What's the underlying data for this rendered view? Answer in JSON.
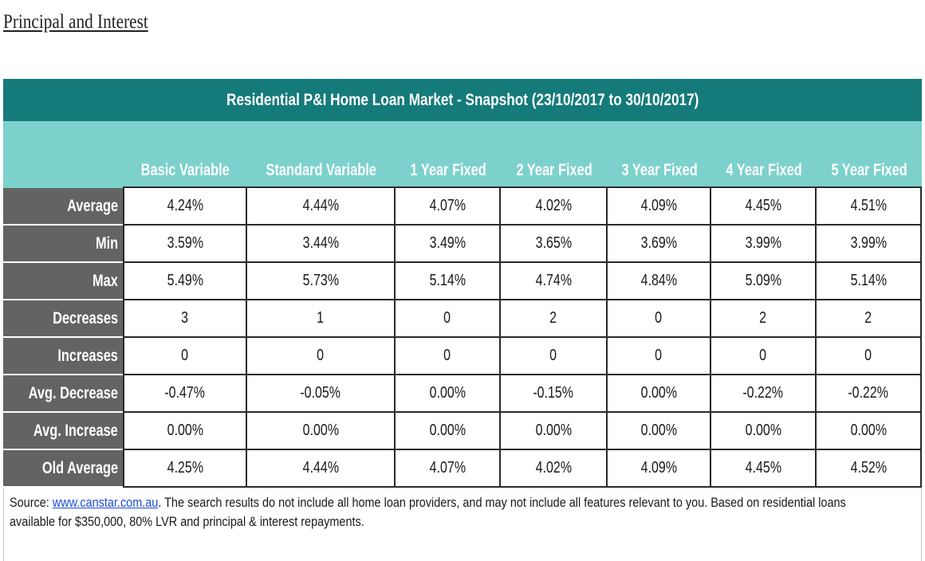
{
  "heading": "Principal and Interest",
  "table": {
    "title": "Residential P&I Home Loan Market - Snapshot (23/10/2017 to 30/10/2017)",
    "columns": [
      "Basic Variable",
      "Standard Variable",
      "1 Year Fixed",
      "2 Year Fixed",
      "3 Year Fixed",
      "4 Year Fixed",
      "5 Year Fixed"
    ],
    "rows": [
      {
        "label": "Average",
        "values": [
          "4.24%",
          "4.44%",
          "4.07%",
          "4.02%",
          "4.09%",
          "4.45%",
          "4.51%"
        ]
      },
      {
        "label": "Min",
        "values": [
          "3.59%",
          "3.44%",
          "3.49%",
          "3.65%",
          "3.69%",
          "3.99%",
          "3.99%"
        ]
      },
      {
        "label": "Max",
        "values": [
          "5.49%",
          "5.73%",
          "5.14%",
          "4.74%",
          "4.84%",
          "5.09%",
          "5.14%"
        ]
      },
      {
        "label": "Decreases",
        "values": [
          "3",
          "1",
          "0",
          "2",
          "0",
          "2",
          "2"
        ]
      },
      {
        "label": "Increases",
        "values": [
          "0",
          "0",
          "0",
          "0",
          "0",
          "0",
          "0"
        ]
      },
      {
        "label": "Avg. Decrease",
        "values": [
          "-0.47%",
          "-0.05%",
          "0.00%",
          "-0.15%",
          "0.00%",
          "-0.22%",
          "-0.22%"
        ]
      },
      {
        "label": "Avg. Increase",
        "values": [
          "0.00%",
          "0.00%",
          "0.00%",
          "0.00%",
          "0.00%",
          "0.00%",
          "0.00%"
        ]
      },
      {
        "label": "Old Average",
        "values": [
          "4.25%",
          "4.44%",
          "4.07%",
          "4.02%",
          "4.09%",
          "4.45%",
          "4.52%"
        ]
      }
    ]
  },
  "source": {
    "prefix": "Source: ",
    "link_text": "www.canstar.com.au",
    "text": ". The search results do not include all home loan providers, and may not include all features relevant to you. Based on residential loans available for $350,000, 80% LVR and principal & interest repayments."
  },
  "colors": {
    "title_bar": "#157a7a",
    "header_band": "#7dd1cc",
    "row_label": "#636363",
    "link": "#1f4fd1"
  }
}
